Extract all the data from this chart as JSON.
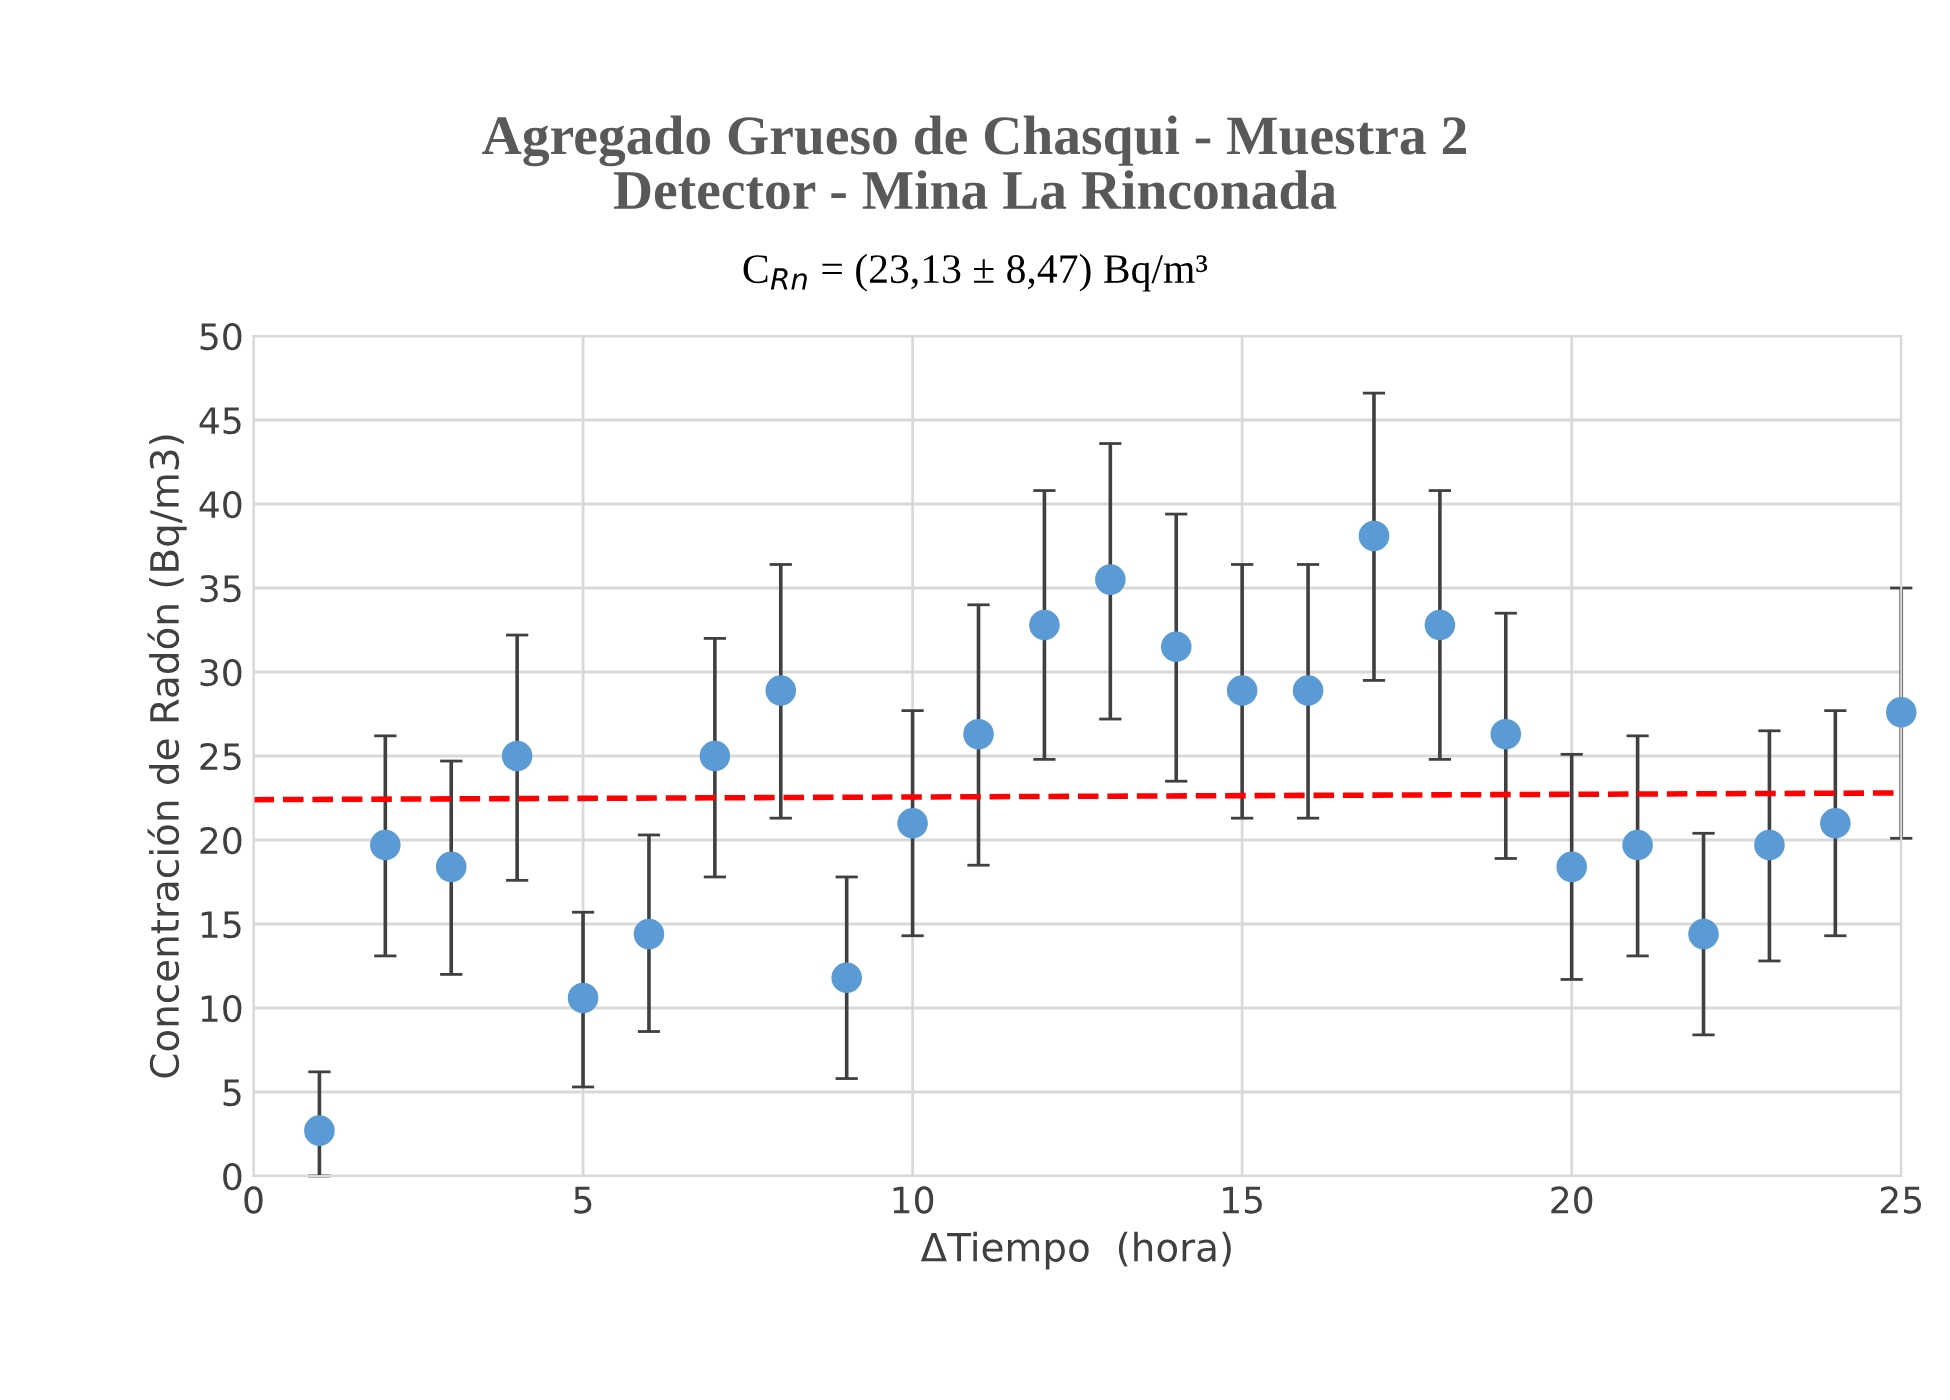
{
  "chart_data": {
    "type": "scatter",
    "title": "Agregado Grueso de Chasqui - Muestra 2\nDetector - Mina La Rinconada",
    "subtitle": "C$_{Rn}$ = (23,13 ± 8,47) Bq/m³",
    "xlabel": "ΔTiempo  (hora)",
    "ylabel": "Concentración de Radón (Bq/m3)",
    "xlim": [
      0,
      25
    ],
    "xticks": [
      0,
      5,
      10,
      15,
      20,
      25
    ],
    "ylim": [
      0,
      50
    ],
    "yticks": [
      0,
      5,
      10,
      15,
      20,
      25,
      30,
      35,
      40,
      45,
      50
    ],
    "grid": true,
    "marker": "circle",
    "series": [
      {
        "color": "#5b9bd5",
        "x": [
          1,
          2,
          3,
          4,
          5,
          6,
          7,
          8,
          9,
          10,
          11,
          12,
          13,
          14,
          15,
          16,
          17,
          18,
          19,
          20,
          21,
          22,
          23,
          24,
          25
        ],
        "values": [
          2.7,
          19.7,
          18.4,
          25.0,
          10.6,
          14.4,
          25.0,
          28.9,
          11.8,
          21.0,
          26.3,
          32.8,
          35.5,
          31.5,
          28.9,
          28.9,
          38.1,
          32.8,
          26.3,
          18.4,
          19.7,
          14.4,
          19.7,
          21.0,
          27.6
        ],
        "errors": [
          [
            0,
            6.2
          ],
          [
            13.1,
            26.2
          ],
          [
            12.0,
            24.7
          ],
          [
            17.6,
            32.2
          ],
          [
            5.3,
            15.7
          ],
          [
            8.6,
            20.3
          ],
          [
            17.8,
            32.0
          ],
          [
            21.3,
            36.4
          ],
          [
            5.8,
            17.8
          ],
          [
            14.3,
            27.7
          ],
          [
            18.5,
            34.0
          ],
          [
            24.8,
            40.8
          ],
          [
            27.2,
            43.6
          ],
          [
            23.5,
            39.4
          ],
          [
            21.3,
            36.4
          ],
          [
            21.3,
            36.4
          ],
          [
            29.5,
            46.6
          ],
          [
            24.8,
            40.8
          ],
          [
            18.9,
            33.5
          ],
          [
            11.7,
            25.1
          ],
          [
            13.1,
            26.2
          ],
          [
            8.4,
            20.4
          ],
          [
            12.8,
            26.5
          ],
          [
            14.3,
            27.7
          ],
          [
            20.1,
            35.0
          ]
        ]
      },
      {
        "type": "line",
        "color": "#ff0000",
        "line_style": "dashed",
        "marker": "none",
        "x": [
          0,
          25
        ],
        "values": [
          22.4,
          22.8
        ]
      }
    ]
  }
}
